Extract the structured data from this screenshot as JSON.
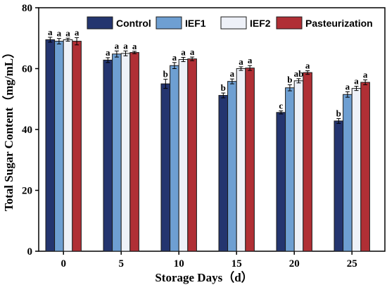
{
  "chart_data": {
    "type": "bar",
    "xlabel": "Storage Days（d）",
    "ylabel": "Total Sugar Content（mg/mL）",
    "categories": [
      "0",
      "5",
      "10",
      "15",
      "20",
      "25"
    ],
    "ylim": [
      0,
      80
    ],
    "yticks": [
      0,
      20,
      40,
      60,
      80
    ],
    "legend_position": "top",
    "series": [
      {
        "name": "Control",
        "color": "#24356f",
        "values": [
          69.5,
          62.8,
          55.0,
          51.2,
          45.6,
          42.8
        ],
        "errors": [
          0.8,
          0.8,
          1.5,
          0.8,
          0.5,
          0.8
        ],
        "labels": [
          "a",
          "a",
          "b",
          "b",
          "c",
          "b"
        ]
      },
      {
        "name": "IEF1",
        "color": "#6e9fd2",
        "values": [
          69.0,
          64.8,
          61.0,
          55.8,
          53.7,
          51.5
        ],
        "errors": [
          0.9,
          1.0,
          1.0,
          0.8,
          1.0,
          0.9
        ],
        "labels": [
          "a",
          "a",
          "a",
          "a",
          "b",
          "a"
        ]
      },
      {
        "name": "IEF2",
        "color": "#eef1f8",
        "values": [
          69.5,
          65.0,
          63.0,
          60.0,
          56.0,
          53.5
        ],
        "errors": [
          0.5,
          0.8,
          0.7,
          0.6,
          0.7,
          0.7
        ],
        "labels": [
          "a",
          "a",
          "a",
          "a",
          "ab",
          "a"
        ]
      },
      {
        "name": "Pasteurization",
        "color": "#b02f35",
        "values": [
          69.0,
          65.3,
          63.2,
          60.2,
          58.7,
          55.5
        ],
        "errors": [
          1.2,
          0.4,
          0.6,
          0.8,
          0.6,
          0.8
        ],
        "labels": [
          "a",
          "a",
          "a",
          "a",
          "a",
          "a"
        ]
      }
    ]
  }
}
